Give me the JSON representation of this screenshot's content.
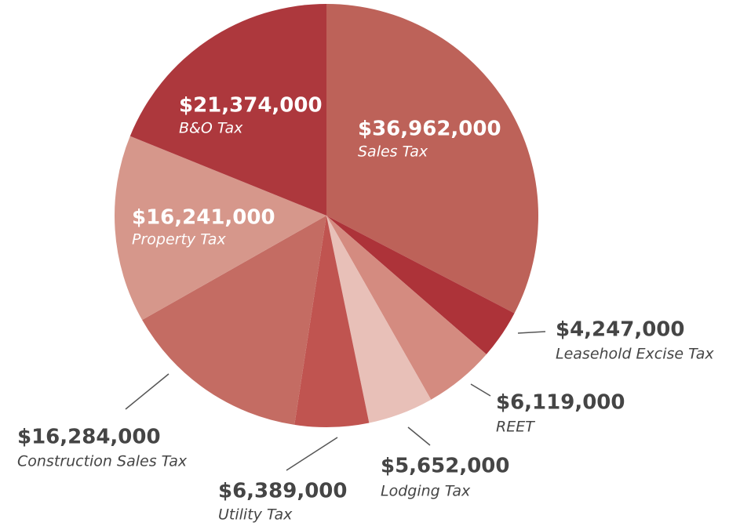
{
  "chart_data": {
    "type": "pie",
    "categories": [
      "Sales Tax",
      "Leasehold Excise Tax",
      "REET",
      "Lodging Tax",
      "Utility Tax",
      "Construction Sales Tax",
      "Property Tax",
      "B&O Tax"
    ],
    "values": [
      36962000,
      4247000,
      6119000,
      5652000,
      6389000,
      16284000,
      16241000,
      21374000
    ],
    "value_labels": [
      "$36,962,000",
      "$4,247,000",
      "$6,119,000",
      "$5,652,000",
      "$6,389,000",
      "$16,284,000",
      "$16,241,000",
      "$21,374,000"
    ],
    "colors": [
      "#bd6259",
      "#ad3339",
      "#d48b80",
      "#e8c0b8",
      "#c05450",
      "#c46c63",
      "#d6978b",
      "#ad383d"
    ]
  }
}
